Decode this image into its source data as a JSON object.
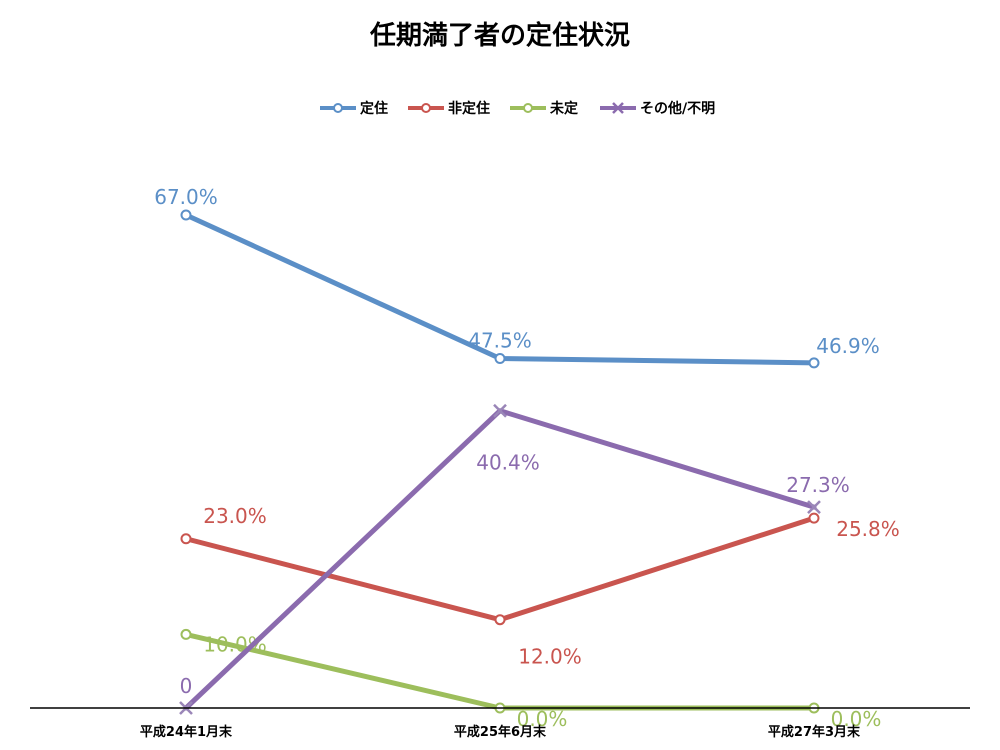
{
  "chart_data": {
    "type": "line",
    "title": "任期満了者の定住状況",
    "categories": [
      "平成24年1月末",
      "平成25年6月末",
      "平成27年3月末"
    ],
    "ylim": [
      0,
      0.8
    ],
    "grid": false,
    "legend": "top",
    "series": [
      {
        "name": "定住",
        "values": [
          0.67,
          0.475,
          0.469
        ],
        "labels": [
          "67.0%",
          "47.5%",
          "46.9%"
        ],
        "color": "#5B8FC7",
        "marker": "circle"
      },
      {
        "name": "非定住",
        "values": [
          0.23,
          0.12,
          0.258
        ],
        "labels": [
          "23.0%",
          "12.0%",
          "25.8%"
        ],
        "color": "#C9554F",
        "marker": "circle"
      },
      {
        "name": "未定",
        "values": [
          0.1,
          0.0,
          0.0
        ],
        "labels": [
          "10.0%",
          "0.0%",
          "0.0%"
        ],
        "color": "#9DBE5C",
        "marker": "circle"
      },
      {
        "name": "その他/不明",
        "values": [
          0.0,
          0.404,
          0.273
        ],
        "labels": [
          "0",
          "40.4%",
          "27.3%"
        ],
        "color": "#8B6BAE",
        "marker": "x"
      }
    ]
  }
}
